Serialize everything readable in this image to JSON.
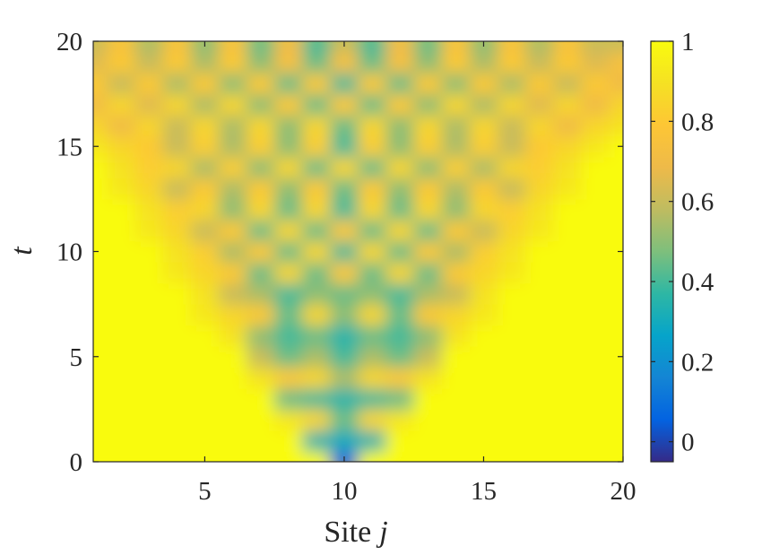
{
  "chart_data": {
    "type": "heatmap",
    "title": "",
    "xlabel": "Site",
    "xlabel_symbol": "j",
    "ylabel": "t",
    "xlim": [
      1,
      20
    ],
    "ylim": [
      0,
      20
    ],
    "xticks": [
      5,
      10,
      15,
      20
    ],
    "yticks": [
      0,
      5,
      10,
      15,
      20
    ],
    "colorbar": {
      "range": [
        -0.05,
        1.0
      ],
      "ticks": [
        0,
        0.2,
        0.4,
        0.6,
        0.8,
        1
      ],
      "tick_labels": [
        "0",
        "0.2",
        "0.4",
        "0.6",
        "0.8",
        "1"
      ],
      "colormap": "parula"
    },
    "sites": [
      1,
      2,
      3,
      4,
      5,
      6,
      7,
      8,
      9,
      10,
      11,
      12,
      13,
      14,
      15,
      16,
      17,
      18,
      19,
      20
    ],
    "center_site": 10,
    "times": [
      0,
      1,
      2,
      3,
      4,
      5,
      6,
      7,
      8,
      9,
      10,
      11,
      12,
      13,
      14,
      15,
      16,
      17,
      18,
      19,
      20
    ],
    "light_cone_velocity": 0.5,
    "values": [
      [
        1,
        1,
        1,
        1,
        1,
        1,
        1,
        1,
        1,
        0.05,
        1,
        1,
        1,
        1,
        1,
        1,
        1,
        1,
        1,
        1
      ],
      [
        1,
        1,
        1,
        1,
        1,
        1,
        1,
        1,
        0.35,
        0.3,
        0.35,
        1,
        1,
        1,
        1,
        1,
        1,
        1,
        1,
        1
      ],
      [
        1,
        1,
        1,
        1,
        1,
        1,
        1,
        0.92,
        0.85,
        0.45,
        0.85,
        0.92,
        1,
        1,
        1,
        1,
        1,
        1,
        1,
        1
      ],
      [
        1,
        1,
        1,
        1,
        1,
        1,
        1,
        0.45,
        0.4,
        0.35,
        0.4,
        0.45,
        1,
        1,
        1,
        1,
        1,
        1,
        1,
        1
      ],
      [
        1,
        1,
        1,
        1,
        1,
        1,
        0.9,
        0.8,
        0.85,
        0.55,
        0.85,
        0.8,
        0.9,
        1,
        1,
        1,
        1,
        1,
        1,
        1
      ],
      [
        1,
        1,
        1,
        1,
        1,
        1,
        0.6,
        0.45,
        0.55,
        0.4,
        0.55,
        0.45,
        0.6,
        1,
        1,
        1,
        1,
        1,
        1,
        1
      ],
      [
        1,
        1,
        1,
        1,
        1,
        0.9,
        0.5,
        0.4,
        0.45,
        0.35,
        0.45,
        0.4,
        0.5,
        0.9,
        1,
        1,
        1,
        1,
        1,
        1
      ],
      [
        1,
        1,
        1,
        1,
        0.92,
        0.85,
        0.8,
        0.45,
        0.85,
        0.5,
        0.85,
        0.45,
        0.8,
        0.85,
        0.92,
        1,
        1,
        1,
        1,
        1
      ],
      [
        1,
        1,
        1,
        1,
        0.9,
        0.6,
        0.55,
        0.4,
        0.5,
        0.45,
        0.5,
        0.4,
        0.55,
        0.6,
        0.9,
        1,
        1,
        1,
        1,
        1
      ],
      [
        1,
        1,
        1,
        0.92,
        0.85,
        0.8,
        0.45,
        0.85,
        0.45,
        0.8,
        0.45,
        0.85,
        0.45,
        0.8,
        0.85,
        0.92,
        1,
        1,
        1,
        1
      ],
      [
        1,
        1,
        1,
        0.9,
        0.82,
        0.55,
        0.8,
        0.45,
        0.85,
        0.4,
        0.85,
        0.45,
        0.8,
        0.55,
        0.82,
        0.9,
        1,
        1,
        1,
        1
      ],
      [
        1,
        1,
        0.92,
        0.85,
        0.6,
        0.8,
        0.45,
        0.85,
        0.45,
        0.8,
        0.45,
        0.85,
        0.45,
        0.8,
        0.6,
        0.85,
        0.92,
        1,
        1,
        1
      ],
      [
        1,
        1,
        0.9,
        0.82,
        0.85,
        0.5,
        0.85,
        0.45,
        0.85,
        0.4,
        0.85,
        0.45,
        0.85,
        0.5,
        0.85,
        0.82,
        0.9,
        1,
        1,
        1
      ],
      [
        1,
        0.92,
        0.85,
        0.6,
        0.8,
        0.55,
        0.8,
        0.5,
        0.8,
        0.45,
        0.8,
        0.5,
        0.8,
        0.55,
        0.8,
        0.6,
        0.85,
        0.92,
        1,
        1
      ],
      [
        1,
        0.9,
        0.82,
        0.85,
        0.55,
        0.82,
        0.5,
        0.85,
        0.45,
        0.85,
        0.45,
        0.85,
        0.5,
        0.82,
        0.55,
        0.85,
        0.82,
        0.9,
        1,
        1
      ],
      [
        0.92,
        0.85,
        0.8,
        0.6,
        0.82,
        0.55,
        0.82,
        0.5,
        0.82,
        0.4,
        0.82,
        0.5,
        0.82,
        0.55,
        0.82,
        0.6,
        0.8,
        0.85,
        0.92,
        1
      ],
      [
        0.85,
        0.7,
        0.85,
        0.6,
        0.85,
        0.55,
        0.85,
        0.5,
        0.85,
        0.45,
        0.85,
        0.5,
        0.85,
        0.55,
        0.85,
        0.6,
        0.85,
        0.7,
        0.85,
        0.9
      ],
      [
        0.7,
        0.85,
        0.65,
        0.85,
        0.55,
        0.85,
        0.5,
        0.8,
        0.45,
        0.8,
        0.45,
        0.8,
        0.5,
        0.85,
        0.55,
        0.85,
        0.65,
        0.85,
        0.7,
        0.85
      ],
      [
        0.8,
        0.6,
        0.8,
        0.55,
        0.8,
        0.5,
        0.8,
        0.45,
        0.8,
        0.4,
        0.8,
        0.45,
        0.8,
        0.5,
        0.8,
        0.55,
        0.8,
        0.6,
        0.8,
        0.7
      ],
      [
        0.65,
        0.8,
        0.6,
        0.8,
        0.55,
        0.8,
        0.5,
        0.75,
        0.45,
        0.75,
        0.45,
        0.75,
        0.5,
        0.8,
        0.55,
        0.8,
        0.6,
        0.8,
        0.65,
        0.75
      ],
      [
        0.6,
        0.75,
        0.55,
        0.75,
        0.5,
        0.75,
        0.45,
        0.7,
        0.4,
        0.6,
        0.4,
        0.7,
        0.45,
        0.75,
        0.5,
        0.75,
        0.55,
        0.75,
        0.6,
        0.6
      ]
    ]
  }
}
